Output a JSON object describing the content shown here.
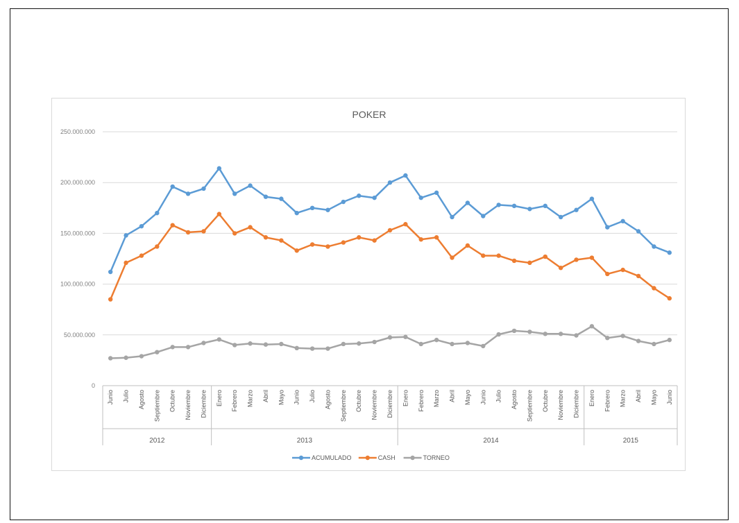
{
  "chart_data": {
    "type": "line",
    "title": "POKER",
    "xlabel": "",
    "ylabel": "",
    "ylim": [
      0,
      250000000
    ],
    "yticks": [
      0,
      50000000,
      100000000,
      150000000,
      200000000,
      250000000
    ],
    "ytick_labels": [
      "0",
      "50.000.000",
      "100.000.000",
      "150.000.000",
      "200.000.000",
      "250.000.000"
    ],
    "grid": true,
    "legend_position": "bottom",
    "categories": [
      "Junio",
      "Julio",
      "Agosto",
      "Septiembre",
      "Octubre",
      "Noviembre",
      "Diciembre",
      "Enero",
      "Febrero",
      "Marzo",
      "Abril",
      "Mayo",
      "Junio",
      "Julio",
      "Agosto",
      "Septiembre",
      "Octubre",
      "Noviembre",
      "Diciembre",
      "Enero",
      "Febrero",
      "Marzo",
      "Abril",
      "Mayo",
      "Junio",
      "Julio",
      "Agosto",
      "Septiembre",
      "Octubre",
      "Noviembre",
      "Diciembre",
      "Enero",
      "Febrero",
      "Marzo",
      "Abril",
      "Mayo",
      "Junio"
    ],
    "year_groups": [
      {
        "label": "2012",
        "start": 0,
        "end": 6
      },
      {
        "label": "2013",
        "start": 7,
        "end": 18
      },
      {
        "label": "2014",
        "start": 19,
        "end": 30
      },
      {
        "label": "2015",
        "start": 31,
        "end": 36
      }
    ],
    "series": [
      {
        "name": "ACUMULADO",
        "color": "#5b9bd5",
        "values": [
          112000000,
          148000000,
          157000000,
          170000000,
          196000000,
          189000000,
          194000000,
          214000000,
          189000000,
          197000000,
          186000000,
          184000000,
          170000000,
          175000000,
          173000000,
          181000000,
          187000000,
          185000000,
          200000000,
          207000000,
          185000000,
          190000000,
          166000000,
          180000000,
          167000000,
          178000000,
          177000000,
          174000000,
          177000000,
          166000000,
          173000000,
          184000000,
          156000000,
          162000000,
          152000000,
          137000000,
          131000000
        ]
      },
      {
        "name": "CASH",
        "color": "#ed7d31",
        "values": [
          85000000,
          121000000,
          128000000,
          137000000,
          158000000,
          151000000,
          152000000,
          169000000,
          150000000,
          156000000,
          146000000,
          143000000,
          133000000,
          139000000,
          137000000,
          141000000,
          146000000,
          143000000,
          153000000,
          159000000,
          144000000,
          146000000,
          126000000,
          138000000,
          128000000,
          128000000,
          123000000,
          121000000,
          127000000,
          116000000,
          124000000,
          126000000,
          110000000,
          114000000,
          108000000,
          96000000,
          86000000
        ]
      },
      {
        "name": "TORNEO",
        "color": "#a5a5a5",
        "values": [
          27000000,
          27500000,
          29000000,
          33000000,
          38000000,
          38000000,
          42000000,
          45500000,
          40000000,
          41500000,
          40500000,
          41000000,
          37000000,
          36500000,
          36500000,
          41000000,
          41500000,
          43000000,
          47500000,
          48000000,
          41000000,
          45000000,
          41000000,
          42000000,
          39000000,
          50500000,
          54000000,
          53000000,
          51000000,
          51000000,
          49500000,
          58500000,
          47000000,
          49000000,
          44000000,
          41000000,
          45000000
        ]
      }
    ]
  }
}
